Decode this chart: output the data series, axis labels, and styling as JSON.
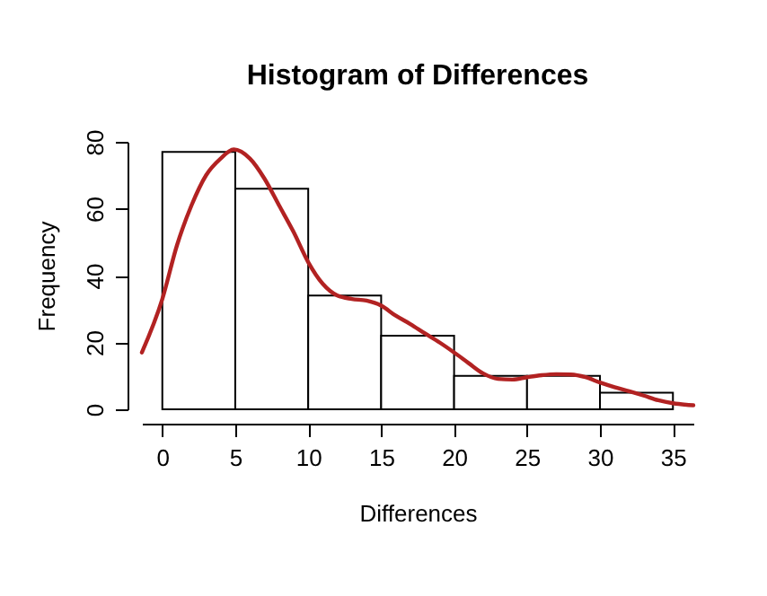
{
  "chart_data": {
    "type": "histogram",
    "title": "Histogram of Differences",
    "xlabel": "Differences",
    "ylabel": "Frequency",
    "bins": [
      0,
      5,
      10,
      15,
      20,
      25,
      30,
      35
    ],
    "values": [
      77,
      66,
      34,
      22,
      10,
      10,
      5
    ],
    "color": "#ffffff",
    "series": [
      {
        "type": "line",
        "color": "#b22222",
        "x": [
          -1.4,
          0,
          1,
          2,
          3,
          4,
          4.9,
          6,
          7,
          8,
          9,
          10,
          11,
          12,
          13,
          14,
          15,
          16,
          17,
          18,
          19,
          20,
          21,
          22,
          23,
          24,
          25,
          26,
          27,
          28,
          29,
          30,
          31,
          32,
          33,
          34,
          35,
          36.4
        ],
        "values": [
          17,
          33,
          49,
          61,
          70,
          75,
          77.7,
          75,
          69,
          61,
          53,
          44,
          37.5,
          34,
          33,
          32.5,
          31,
          28,
          25.5,
          22.7,
          20,
          17,
          13.8,
          10.7,
          9.1,
          8.9,
          9.6,
          10.2,
          10.5,
          10.4,
          9.6,
          8,
          6.6,
          5.4,
          4.1,
          2.7,
          1.8,
          1.2
        ]
      }
    ],
    "xlim": [
      -1.4,
      36.4
    ],
    "xticks": [
      0,
      5,
      10,
      15,
      20,
      25,
      30,
      35
    ],
    "ylim": [
      0,
      80
    ],
    "yticks": [
      0,
      20,
      40,
      60,
      80
    ],
    "grid": false
  }
}
